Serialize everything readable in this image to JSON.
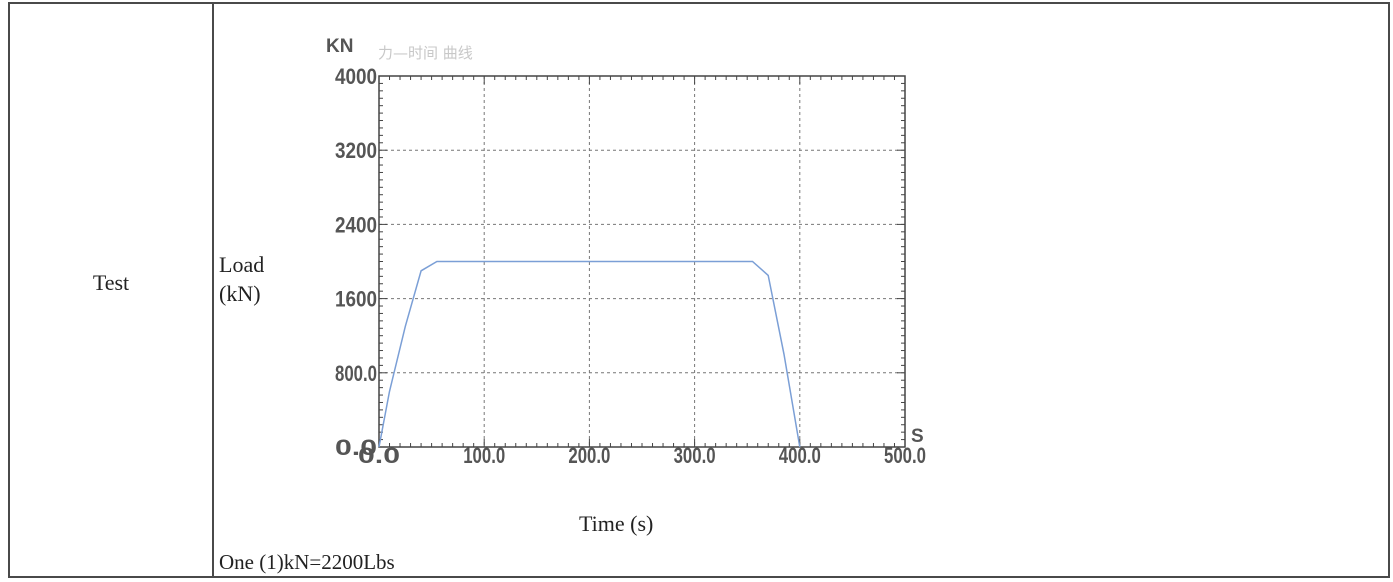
{
  "table": {
    "row_label": "Test",
    "y_caption_line1": "Load",
    "y_caption_line2": "(kN)",
    "x_caption": "Time (s)",
    "footnote": "One (1)kN=2200Lbs"
  },
  "chart_data": {
    "type": "line",
    "title": "力—时间 曲线",
    "y_unit": "KN",
    "x_unit": "S",
    "xlabel": "Time (s)",
    "ylabel": "Load (kN)",
    "xlim": [
      0,
      500
    ],
    "ylim": [
      0,
      4000
    ],
    "x_ticks": [
      "0.0",
      "100.0",
      "200.0",
      "300.0",
      "400.0",
      "500.0"
    ],
    "y_ticks": [
      "0.0",
      "800.0",
      "1600",
      "2400",
      "3200",
      "4000"
    ],
    "grid": true,
    "line_color": "#7b9fd6",
    "series": [
      {
        "x": [
          0,
          10,
          25,
          40,
          55,
          100,
          200,
          300,
          355,
          370,
          385,
          400
        ],
        "y": [
          0,
          600,
          1300,
          1900,
          2000,
          2000,
          2000,
          2000,
          2000,
          1850,
          1000,
          0
        ]
      }
    ]
  }
}
